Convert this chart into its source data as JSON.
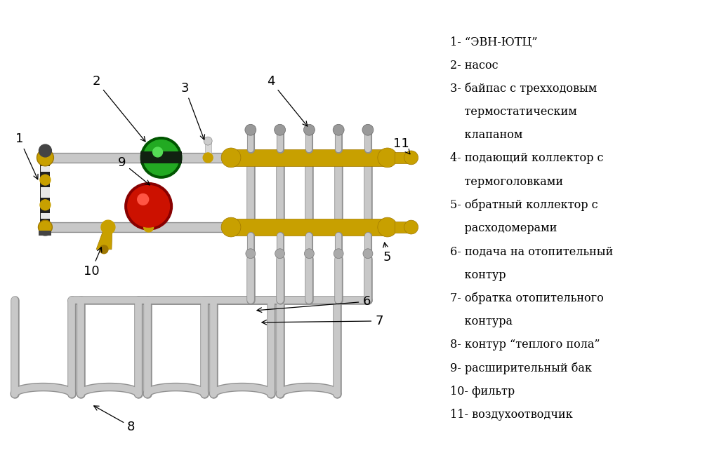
{
  "bg_color": "#ffffff",
  "legend_items": [
    {
      "num": "1",
      "text": "- “ЭВН-ЮТЦ”"
    },
    {
      "num": "2",
      "text": "- насос"
    },
    {
      "num": "3",
      "text": "- байпас с трехходовым"
    },
    {
      "num": "",
      "text": "    термостатическим"
    },
    {
      "num": "",
      "text": "    клапаном"
    },
    {
      "num": "4",
      "text": "- подающий коллектор с"
    },
    {
      "num": "",
      "text": "    термоголовками"
    },
    {
      "num": "5",
      "text": "- обратный коллектор с"
    },
    {
      "num": "",
      "text": "    расходомерами"
    },
    {
      "num": "6",
      "text": "- подача на отопительный"
    },
    {
      "num": "",
      "text": "    контур"
    },
    {
      "num": "7",
      "text": "- обратка отопительного"
    },
    {
      "num": "",
      "text": "    контура"
    },
    {
      "num": "8",
      "text": "- контур “теплого пола”"
    },
    {
      "num": "9",
      "text": "- расширительный бак"
    },
    {
      "num": "10",
      "text": "- фильтр"
    },
    {
      "num": "11",
      "text": "- воздухоотводчик"
    }
  ],
  "pipe_color": "#c8c8c8",
  "pipe_edge": "#909090",
  "brass_color": "#c8a000",
  "brass_dark": "#a07800",
  "pump_green": "#22aa22",
  "pump_green_dark": "#005500",
  "pump_red": "#cc1100",
  "pump_red_dark": "#880000",
  "black_device": "#222222",
  "label_color": "#000000"
}
